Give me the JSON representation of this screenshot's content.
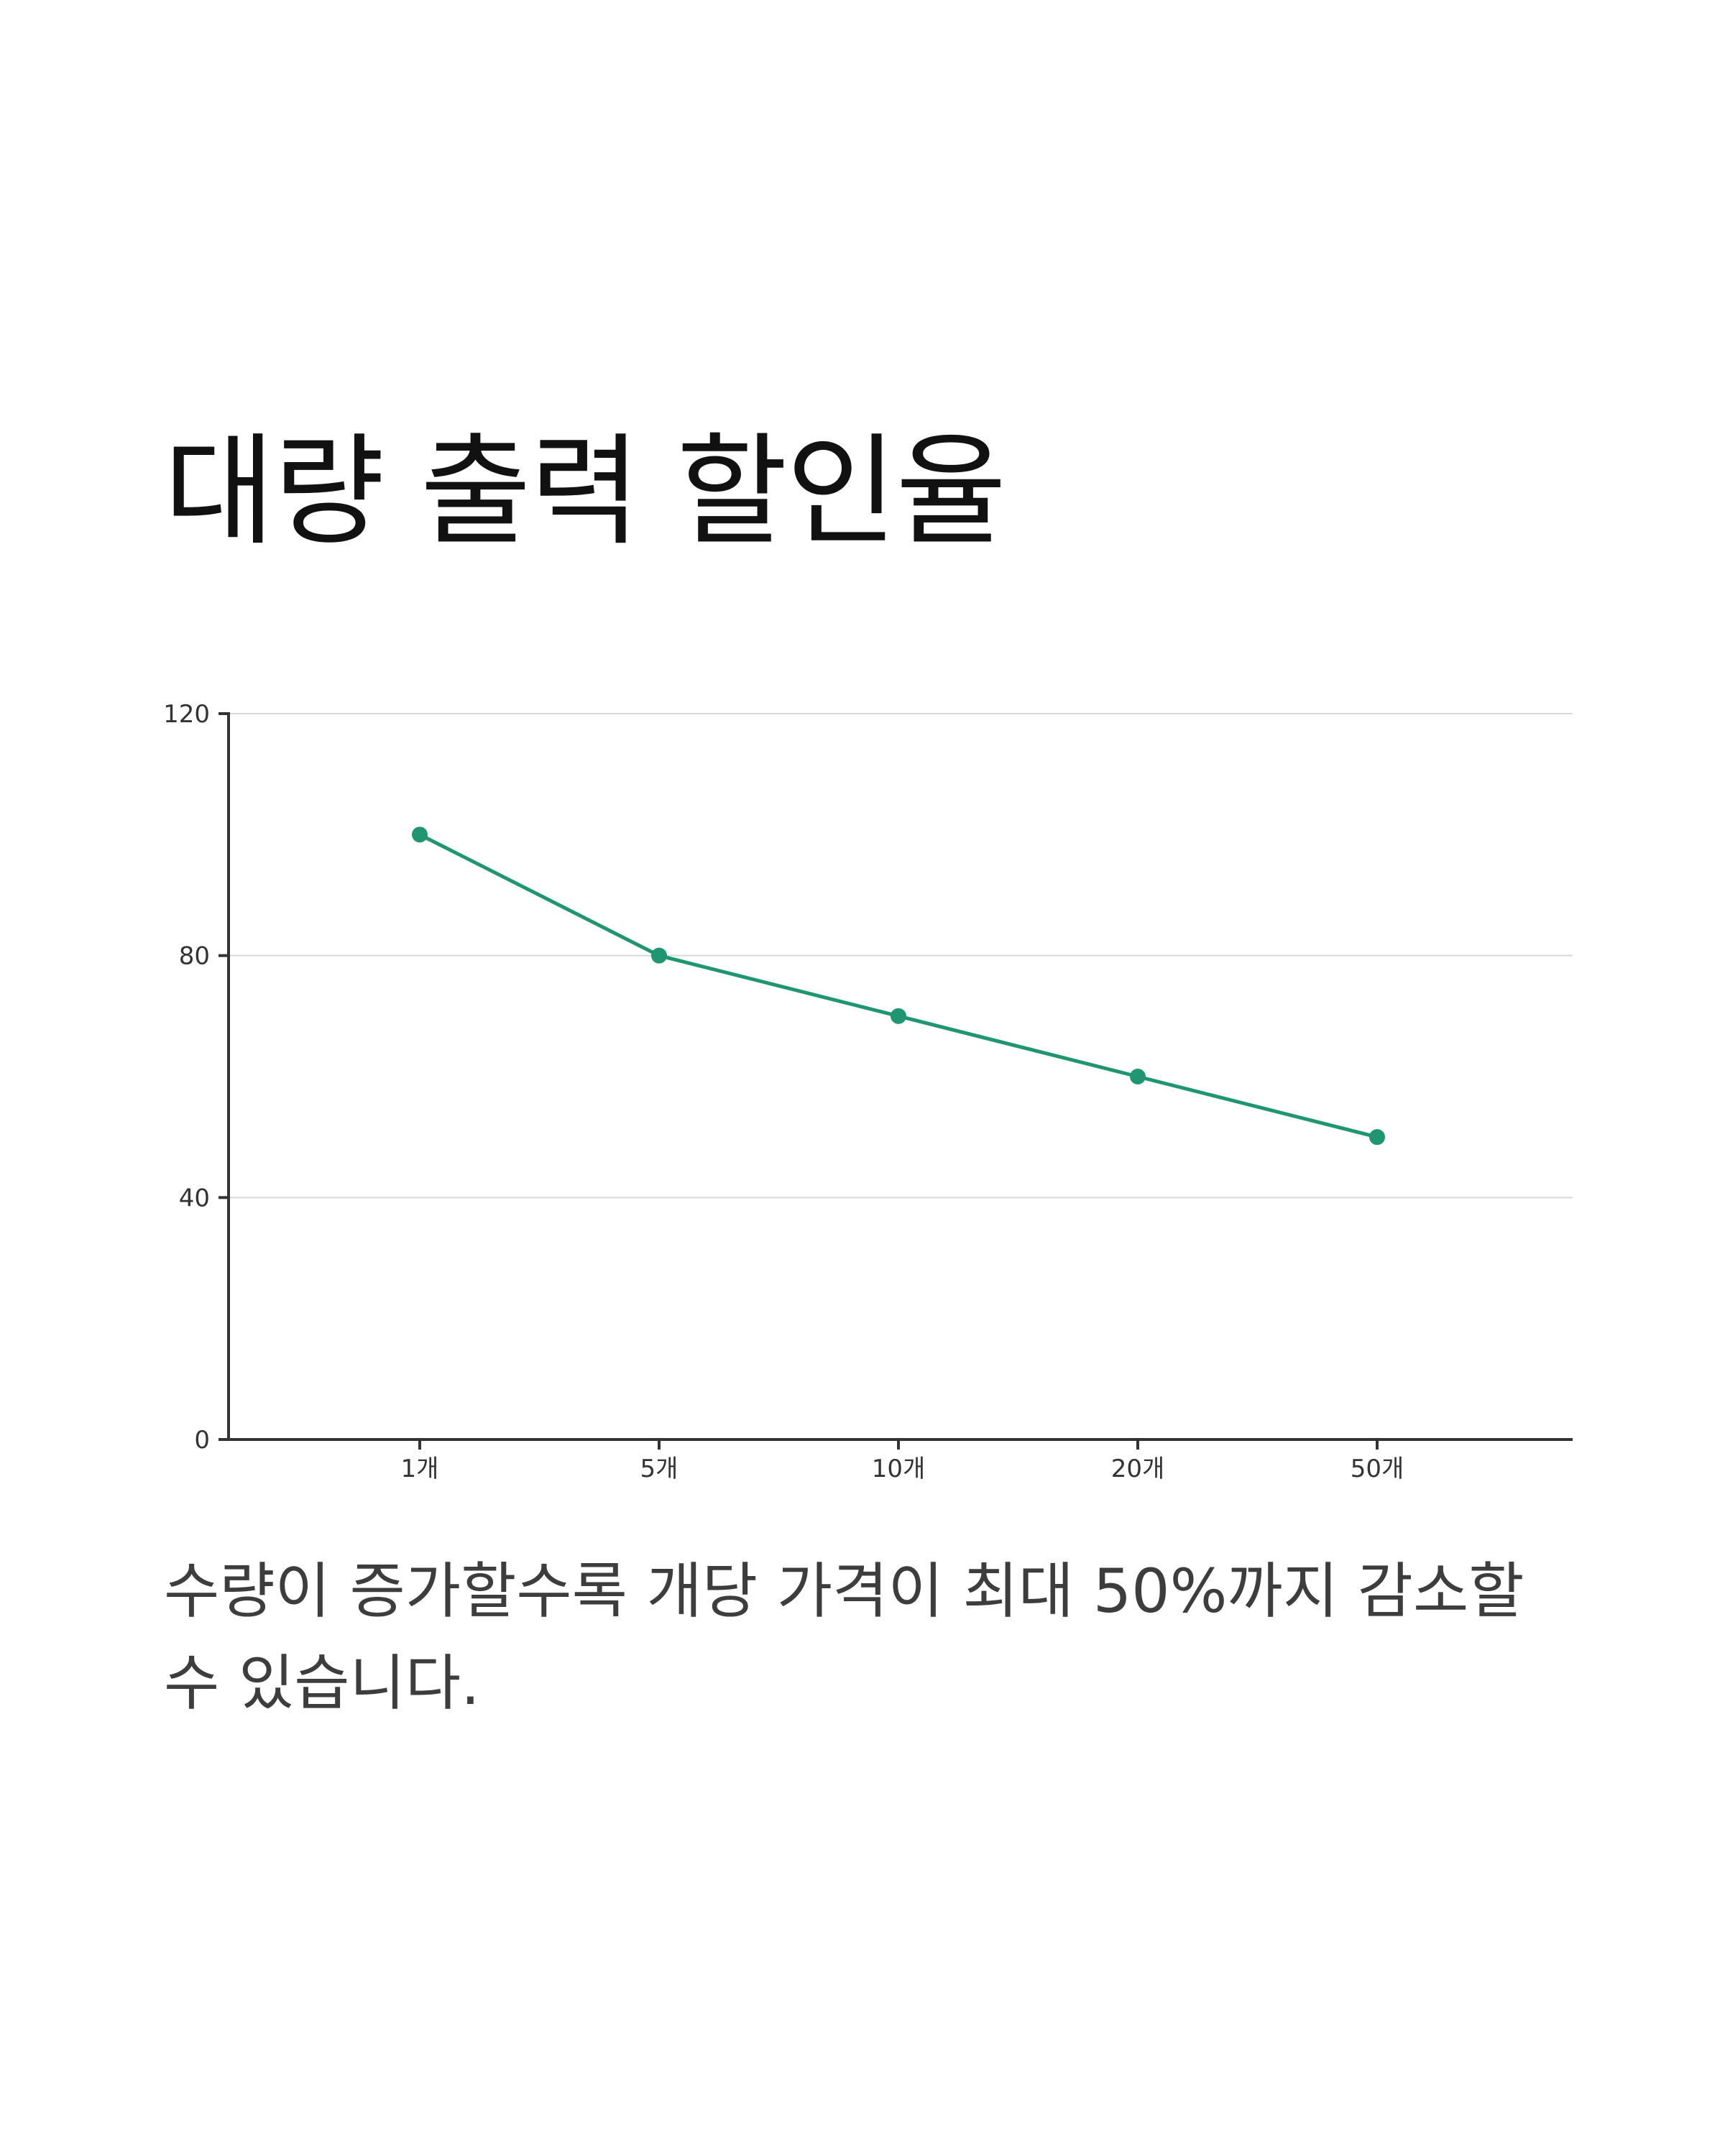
{
  "title": "대량 출력 할인율",
  "description": "수량이 증가할수록 개당 가격이 최대 50%까지 감소할 수 있습니다.",
  "chart_data": {
    "type": "line",
    "title": "",
    "xlabel": "",
    "ylabel": "",
    "categories": [
      "1개",
      "5개",
      "10개",
      "20개",
      "50개"
    ],
    "series": [
      {
        "values": [
          100,
          80,
          70,
          60,
          50
        ]
      }
    ],
    "ylim": [
      0,
      120
    ],
    "yticks": [
      0,
      40,
      80,
      120
    ],
    "grid": true,
    "legend": "none",
    "line_color": "#1f9570"
  }
}
